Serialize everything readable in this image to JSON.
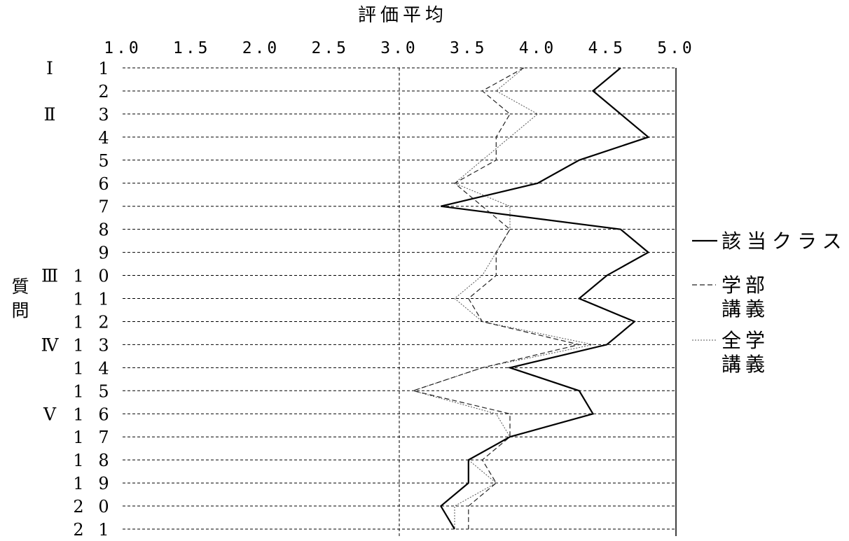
{
  "chart_data": {
    "type": "line",
    "orientation": "horizontal-values",
    "title": "評価平均",
    "xlim": [
      1.0,
      5.0
    ],
    "xticks": [
      "1.0",
      "1.5",
      "2.0",
      "2.5",
      "3.0",
      "3.5",
      "4.0",
      "4.5",
      "5.0"
    ],
    "ylabel": "質問",
    "categories": [
      "1",
      "2",
      "3",
      "4",
      "5",
      "6",
      "7",
      "8",
      "9",
      "10",
      "11",
      "12",
      "13",
      "14",
      "15",
      "16",
      "17",
      "18",
      "19",
      "20",
      "21"
    ],
    "category_digits": [
      [
        "1"
      ],
      [
        "2"
      ],
      [
        "3"
      ],
      [
        "4"
      ],
      [
        "5"
      ],
      [
        "6"
      ],
      [
        "7"
      ],
      [
        "8"
      ],
      [
        "9"
      ],
      [
        "1",
        "0"
      ],
      [
        "1",
        "1"
      ],
      [
        "1",
        "2"
      ],
      [
        "1",
        "3"
      ],
      [
        "1",
        "4"
      ],
      [
        "1",
        "5"
      ],
      [
        "1",
        "6"
      ],
      [
        "1",
        "7"
      ],
      [
        "1",
        "8"
      ],
      [
        "1",
        "9"
      ],
      [
        "2",
        "0"
      ],
      [
        "2",
        "1"
      ]
    ],
    "groups": [
      {
        "label": "Ⅰ",
        "start_index": 0
      },
      {
        "label": "Ⅱ",
        "start_index": 2
      },
      {
        "label": "Ⅲ",
        "start_index": 9
      },
      {
        "label": "Ⅳ",
        "start_index": 12
      },
      {
        "label": "Ⅴ",
        "start_index": 15
      }
    ],
    "grid": {
      "horizontal": true,
      "vertical_at": [
        3.0
      ]
    },
    "legend_position": "right",
    "series": [
      {
        "name": "該当クラス",
        "style": "solid",
        "values": [
          4.6,
          4.4,
          4.6,
          4.8,
          4.3,
          4.0,
          3.3,
          4.6,
          4.8,
          4.5,
          4.3,
          4.7,
          4.5,
          3.8,
          4.3,
          4.4,
          3.8,
          3.5,
          3.5,
          3.3,
          3.4
        ]
      },
      {
        "name": "学部講義",
        "name_lines": [
          "学部",
          "講義"
        ],
        "style": "dashed",
        "values": [
          3.9,
          3.6,
          3.8,
          3.7,
          3.7,
          3.4,
          3.6,
          3.8,
          3.7,
          3.7,
          3.5,
          3.6,
          4.3,
          3.6,
          3.1,
          3.8,
          3.8,
          3.6,
          3.7,
          3.5,
          3.5
        ]
      },
      {
        "name": "全学講義",
        "name_lines": [
          "全学",
          "講義"
        ],
        "style": "dotted",
        "values": [
          3.9,
          3.7,
          4.0,
          3.8,
          3.6,
          3.4,
          3.8,
          3.8,
          3.7,
          3.6,
          3.4,
          3.6,
          4.4,
          3.6,
          3.1,
          3.7,
          3.8,
          3.5,
          3.7,
          3.4,
          3.4
        ]
      }
    ]
  }
}
